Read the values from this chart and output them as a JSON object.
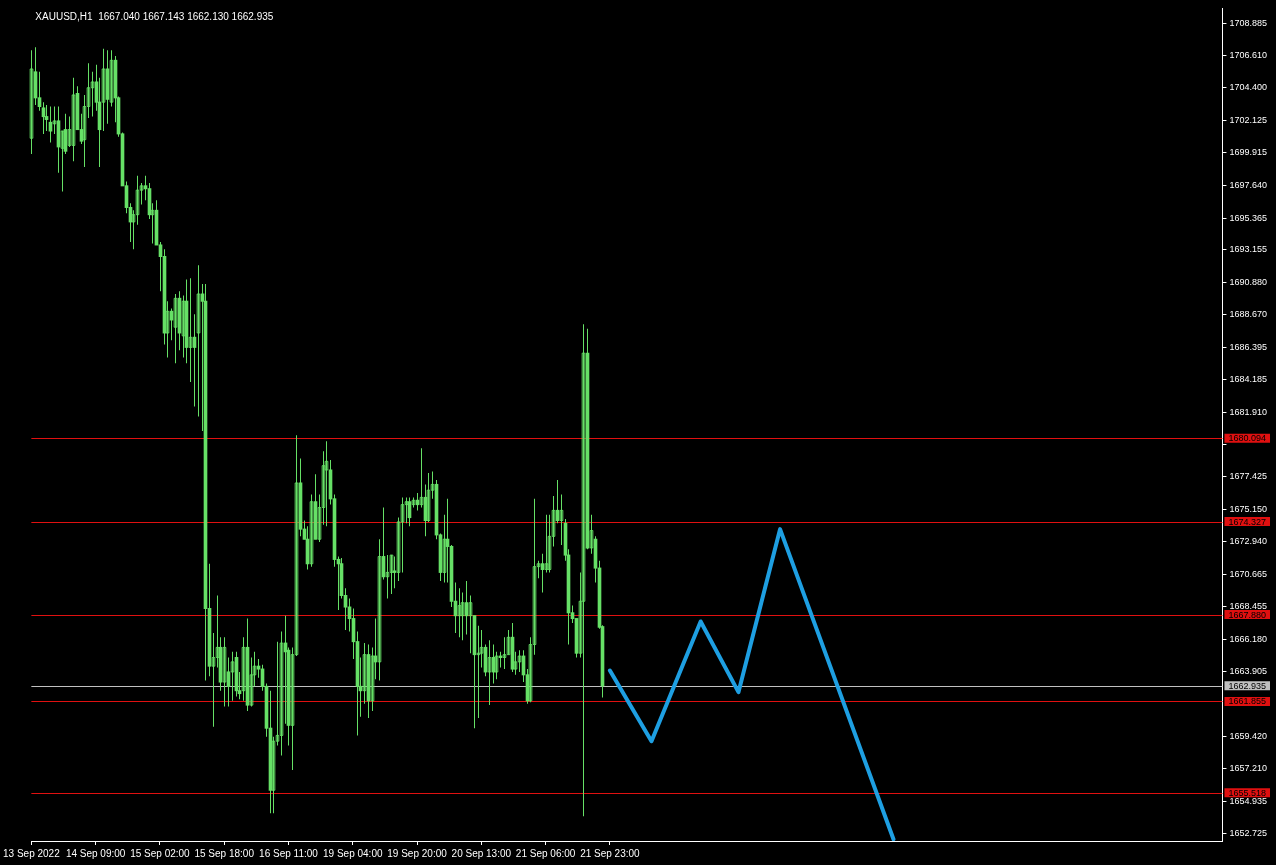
{
  "chart_data": {
    "type": "candlestick",
    "title": "XAUUSD,H1  1667.040 1667.143 1662.130 1662.935",
    "color": "#66e066",
    "categories": [
      "13 Sep 2022",
      null,
      null,
      null,
      null,
      null,
      null,
      null,
      null,
      null,
      null,
      null,
      null,
      null,
      null,
      null,
      null,
      "14 Sep 09:00",
      null,
      null,
      null,
      null,
      null,
      null,
      null,
      null,
      null,
      null,
      null,
      null,
      null,
      null,
      null,
      null,
      "15 Sep 02:00",
      null,
      null,
      null,
      null,
      null,
      null,
      null,
      null,
      null,
      null,
      null,
      null,
      null,
      null,
      null,
      null,
      "15 Sep 18:00",
      null,
      null,
      null,
      null,
      null,
      null,
      null,
      null,
      null,
      null,
      null,
      null,
      null,
      null,
      null,
      null,
      "16 Sep 11:00",
      null,
      null,
      null,
      null,
      null,
      null,
      null,
      null,
      null,
      null,
      null,
      null,
      null,
      null,
      null,
      null,
      "19 Sep 04:00",
      null,
      null,
      null,
      null,
      null,
      null,
      null,
      null,
      null,
      null,
      null,
      null,
      null,
      null,
      null,
      null,
      "19 Sep 20:00",
      null,
      null,
      null,
      null,
      null,
      null,
      null,
      null,
      null,
      null,
      null,
      null,
      null,
      null,
      null,
      null,
      "20 Sep 13:00",
      null,
      null,
      null,
      null,
      null,
      null,
      null,
      null,
      null,
      null,
      null,
      null,
      null,
      null,
      null,
      null,
      "21 Sep 06:00",
      null,
      null,
      null,
      null,
      null,
      null,
      null,
      null,
      null,
      null,
      null,
      null,
      null,
      null,
      null,
      null,
      "21 Sep 23:00",
      null,
      null,
      null,
      null,
      null,
      null,
      null,
      null,
      null,
      null,
      null,
      null,
      null,
      null,
      null,
      null,
      null,
      null,
      null,
      null,
      null,
      null,
      null,
      null,
      null,
      null,
      null,
      null,
      null,
      null,
      null,
      null,
      null,
      null,
      null,
      null,
      null,
      null,
      null,
      null,
      null,
      null,
      null,
      null,
      null,
      null,
      null,
      null,
      null,
      null,
      null,
      null,
      null,
      null,
      null,
      null,
      null,
      null,
      null,
      null,
      null,
      null,
      null,
      null,
      null,
      null,
      null,
      null,
      null,
      null,
      null,
      null,
      null,
      null,
      null,
      null,
      null,
      null,
      null,
      null,
      null,
      null,
      null,
      null,
      null,
      null,
      null,
      null,
      null,
      null,
      null,
      null,
      null,
      null,
      null,
      null,
      null,
      null,
      null,
      null,
      null,
      null,
      null,
      null,
      null,
      null,
      null,
      null,
      null,
      null,
      null,
      null,
      null,
      null,
      null,
      null,
      null,
      null,
      null,
      null,
      null,
      null,
      null,
      null,
      null,
      null,
      null,
      null,
      null,
      null,
      null,
      null,
      null,
      null,
      null,
      null,
      null,
      null,
      null,
      null,
      null,
      null,
      null,
      null,
      null,
      null,
      null,
      null,
      null,
      null,
      null,
      null,
      null,
      null,
      null,
      null,
      null,
      null,
      null,
      null,
      null,
      null
    ],
    "ohlc": [
      [
        1700.9,
        1707.0,
        1699.8,
        1705.7
      ],
      [
        1705.5,
        1707.2,
        1703.2,
        1703.7
      ],
      [
        1703.7,
        1705.5,
        1702.8,
        1703.1
      ],
      [
        1703.0,
        1703.4,
        1701.2,
        1702.4
      ],
      [
        1702.4,
        1703.2,
        1701.4,
        1702.2
      ],
      [
        1702.0,
        1703.1,
        1700.6,
        1701.4
      ],
      [
        1701.9,
        1703.1,
        1701.2,
        1702.1
      ],
      [
        1702.1,
        1703.1,
        1698.5,
        1700.3
      ],
      [
        1700.2,
        1701.4,
        1697.2,
        1701.4
      ],
      [
        1701.5,
        1702.6,
        1699.8,
        1700.0
      ],
      [
        1700.4,
        1702.4,
        1700.3,
        1701.5
      ],
      [
        1700.4,
        1705.1,
        1699.3,
        1703.9
      ],
      [
        1704.0,
        1704.5,
        1701.5,
        1701.5
      ],
      [
        1701.5,
        1702.6,
        1700.5,
        1700.7
      ],
      [
        1700.8,
        1703.9,
        1698.9,
        1703.1
      ],
      [
        1703.1,
        1706.1,
        1702.3,
        1704.4
      ],
      [
        1704.4,
        1705.5,
        1702.4,
        1704.8
      ],
      [
        1704.8,
        1706.0,
        1702.8,
        1703.4
      ],
      [
        1703.4,
        1705.1,
        1698.9,
        1701.5
      ],
      [
        1703.4,
        1707.1,
        1701.4,
        1705.7
      ],
      [
        1705.7,
        1707.0,
        1701.9,
        1703.6
      ],
      [
        1703.4,
        1707.0,
        1703.1,
        1706.3
      ],
      [
        1706.3,
        1706.6,
        1702.0,
        1703.7
      ],
      [
        1703.7,
        1703.8,
        1701.0,
        1701.2
      ],
      [
        1701.2,
        1701.3,
        1697.6,
        1697.6
      ],
      [
        1697.6,
        1697.9,
        1695.7,
        1696.1
      ],
      [
        1696.1,
        1696.4,
        1693.7,
        1695.1
      ],
      [
        1695.1,
        1695.9,
        1693.2,
        1695.6
      ],
      [
        1695.6,
        1698.3,
        1694.9,
        1697.3
      ],
      [
        1697.3,
        1697.8,
        1696.3,
        1697.6
      ],
      [
        1697.6,
        1698.3,
        1696.6,
        1697.4
      ],
      [
        1697.4,
        1697.8,
        1695.3,
        1695.6
      ],
      [
        1695.6,
        1696.4,
        1693.6,
        1695.9
      ],
      [
        1695.9,
        1696.6,
        1693.5,
        1693.5
      ],
      [
        1693.5,
        1693.7,
        1690.3,
        1692.7
      ],
      [
        1692.7,
        1693.2,
        1686.6,
        1687.4
      ],
      [
        1687.4,
        1689.6,
        1685.7,
        1688.9
      ],
      [
        1688.9,
        1689.1,
        1686.9,
        1688.3
      ],
      [
        1687.8,
        1690.1,
        1685.3,
        1689.8
      ],
      [
        1689.8,
        1690.3,
        1686.2,
        1687.4
      ],
      [
        1687.2,
        1690.0,
        1685.7,
        1689.6
      ],
      [
        1689.6,
        1691.1,
        1685.3,
        1686.4
      ],
      [
        1686.4,
        1691.2,
        1684.0,
        1687.1
      ],
      [
        1687.1,
        1688.7,
        1682.3,
        1686.4
      ],
      [
        1687.4,
        1692.1,
        1681.6,
        1690.1
      ],
      [
        1690.1,
        1690.8,
        1680.6,
        1689.6
      ],
      [
        1689.6,
        1690.8,
        1663.3,
        1668.3
      ],
      [
        1668.3,
        1671.4,
        1663.6,
        1664.3
      ],
      [
        1664.3,
        1666.6,
        1660.1,
        1664.9
      ],
      [
        1664.9,
        1669.2,
        1664.2,
        1665.6
      ],
      [
        1665.6,
        1666.3,
        1662.6,
        1663.2
      ],
      [
        1663.2,
        1666.3,
        1661.5,
        1665.6
      ],
      [
        1663.9,
        1664.9,
        1661.5,
        1662.9
      ],
      [
        1663.9,
        1665.3,
        1661.9,
        1664.6
      ],
      [
        1664.9,
        1665.3,
        1662.2,
        1662.6
      ],
      [
        1662.6,
        1663.9,
        1662.0,
        1662.4
      ],
      [
        1662.6,
        1666.3,
        1661.9,
        1665.6
      ],
      [
        1665.6,
        1667.6,
        1661.2,
        1661.6
      ],
      [
        1661.6,
        1664.9,
        1661.5,
        1663.7
      ],
      [
        1663.7,
        1665.3,
        1662.9,
        1664.3
      ],
      [
        1664.3,
        1664.8,
        1663.5,
        1664.1
      ],
      [
        1664.1,
        1664.4,
        1662.6,
        1662.9
      ],
      [
        1662.9,
        1663.1,
        1659.4,
        1660.0
      ],
      [
        1660.0,
        1662.6,
        1654.1,
        1655.7
      ],
      [
        1655.7,
        1659.4,
        1654.1,
        1659.1
      ],
      [
        1659.1,
        1666.0,
        1658.8,
        1659.5
      ],
      [
        1659.5,
        1666.7,
        1658.1,
        1665.9
      ],
      [
        1665.9,
        1667.8,
        1660.3,
        1665.3
      ],
      [
        1665.4,
        1665.6,
        1658.8,
        1660.2
      ],
      [
        1660.2,
        1665.6,
        1657.1,
        1665.1
      ],
      [
        1665.1,
        1680.3,
        1665.0,
        1677.0
      ],
      [
        1677.0,
        1678.7,
        1673.3,
        1673.8
      ],
      [
        1673.8,
        1674.4,
        1673.1,
        1673.1
      ],
      [
        1673.1,
        1674.0,
        1671.0,
        1671.4
      ],
      [
        1671.4,
        1676.2,
        1671.2,
        1675.7
      ],
      [
        1675.7,
        1677.6,
        1673.1,
        1673.1
      ],
      [
        1673.1,
        1676.2,
        1672.9,
        1675.3
      ],
      [
        1675.3,
        1679.2,
        1674.1,
        1678.2
      ],
      [
        1677.9,
        1679.9,
        1674.0,
        1678.5
      ],
      [
        1677.9,
        1678.6,
        1675.5,
        1675.9
      ],
      [
        1675.9,
        1676.2,
        1671.2,
        1671.7
      ],
      [
        1671.7,
        1671.9,
        1668.2,
        1671.4
      ],
      [
        1671.4,
        1671.8,
        1669.0,
        1669.2
      ],
      [
        1669.2,
        1669.7,
        1666.8,
        1668.4
      ],
      [
        1668.4,
        1669.0,
        1666.7,
        1667.6
      ],
      [
        1667.6,
        1668.3,
        1664.8,
        1666.0
      ],
      [
        1666.0,
        1666.7,
        1659.5,
        1662.9
      ],
      [
        1662.9,
        1664.9,
        1660.8,
        1662.6
      ],
      [
        1662.6,
        1665.9,
        1661.7,
        1665.1
      ],
      [
        1665.1,
        1665.8,
        1660.7,
        1661.9
      ],
      [
        1661.9,
        1665.6,
        1661.2,
        1665.0
      ],
      [
        1665.0,
        1667.6,
        1663.4,
        1664.6
      ],
      [
        1664.6,
        1673.1,
        1663.3,
        1671.9
      ],
      [
        1671.9,
        1675.3,
        1670.3,
        1670.5
      ],
      [
        1670.5,
        1672.0,
        1669.0,
        1670.8
      ],
      [
        1670.8,
        1672.0,
        1669.3,
        1672.0
      ],
      [
        1670.9,
        1671.9,
        1669.7,
        1670.8
      ],
      [
        1670.8,
        1674.6,
        1670.2,
        1674.3
      ],
      [
        1674.3,
        1676.0,
        1670.8,
        1675.5
      ],
      [
        1675.5,
        1676.0,
        1674.2,
        1675.7
      ],
      [
        1675.7,
        1676.0,
        1674.0,
        1674.6
      ],
      [
        1675.5,
        1676.0,
        1675.3,
        1675.8
      ],
      [
        1675.8,
        1676.3,
        1675.1,
        1675.5
      ],
      [
        1675.5,
        1679.4,
        1675.3,
        1676.0
      ],
      [
        1676.0,
        1676.9,
        1673.3,
        1674.4
      ],
      [
        1674.4,
        1677.7,
        1674.3,
        1676.5
      ],
      [
        1676.5,
        1677.8,
        1675.9,
        1676.9
      ],
      [
        1676.9,
        1677.2,
        1673.1,
        1673.4
      ],
      [
        1673.4,
        1673.5,
        1670.2,
        1670.8
      ],
      [
        1670.8,
        1674.8,
        1670.1,
        1673.1
      ],
      [
        1673.1,
        1675.9,
        1670.1,
        1672.6
      ],
      [
        1672.6,
        1672.7,
        1668.4,
        1668.8
      ],
      [
        1668.8,
        1670.1,
        1666.6,
        1667.8
      ],
      [
        1667.8,
        1669.7,
        1666.3,
        1668.5
      ],
      [
        1667.8,
        1669.4,
        1666.1,
        1668.7
      ],
      [
        1668.7,
        1670.2,
        1666.5,
        1667.8
      ],
      [
        1667.8,
        1669.2,
        1665.2,
        1668.7
      ],
      [
        1667.8,
        1667.8,
        1660.0,
        1665.1
      ],
      [
        1665.1,
        1667.1,
        1660.7,
        1665.2
      ],
      [
        1665.2,
        1666.8,
        1664.2,
        1665.6
      ],
      [
        1665.6,
        1665.8,
        1663.6,
        1663.9
      ],
      [
        1663.9,
        1666.1,
        1661.6,
        1664.9
      ],
      [
        1664.9,
        1665.8,
        1663.1,
        1663.9
      ],
      [
        1663.9,
        1665.3,
        1663.4,
        1665.0
      ],
      [
        1665.0,
        1665.3,
        1664.2,
        1664.9
      ],
      [
        1664.9,
        1666.3,
        1664.1,
        1665.1
      ],
      [
        1665.1,
        1666.8,
        1665.1,
        1666.3
      ],
      [
        1666.3,
        1667.3,
        1663.9,
        1664.1
      ],
      [
        1664.1,
        1665.3,
        1663.7,
        1664.6
      ],
      [
        1664.6,
        1665.4,
        1663.9,
        1665.0
      ],
      [
        1665.0,
        1665.4,
        1663.2,
        1663.7
      ],
      [
        1663.7,
        1664.1,
        1661.7,
        1661.9
      ],
      [
        1661.9,
        1666.3,
        1661.8,
        1665.8
      ],
      [
        1665.8,
        1675.9,
        1665.1,
        1671.2
      ],
      [
        1671.2,
        1671.6,
        1670.4,
        1671.4
      ],
      [
        1671.4,
        1672.1,
        1669.4,
        1671.0
      ],
      [
        1671.0,
        1674.8,
        1670.8,
        1671.4
      ],
      [
        1671.0,
        1674.8,
        1670.8,
        1673.3
      ],
      [
        1673.3,
        1676.1,
        1672.6,
        1675.1
      ],
      [
        1675.1,
        1677.2,
        1674.2,
        1674.4
      ],
      [
        1674.4,
        1676.2,
        1672.7,
        1675.1
      ],
      [
        1674.2,
        1674.5,
        1671.6,
        1672.0
      ],
      [
        1672.0,
        1672.4,
        1665.8,
        1668.0
      ],
      [
        1668.0,
        1668.5,
        1667.3,
        1667.6
      ],
      [
        1667.6,
        1667.6,
        1664.9,
        1665.2
      ],
      [
        1665.2,
        1670.8,
        1664.9,
        1668.8
      ],
      [
        1668.8,
        1688.0,
        1653.9,
        1686.0
      ],
      [
        1686.0,
        1687.7,
        1672.4,
        1672.5
      ],
      [
        1672.5,
        1674.8,
        1672.1,
        1673.7
      ],
      [
        1673.1,
        1673.3,
        1670.1,
        1671.1
      ],
      [
        1671.1,
        1671.6,
        1666.9,
        1667.0
      ],
      [
        1667.04,
        1667.143,
        1662.13,
        1662.935
      ],
      null,
      null,
      null,
      null,
      null,
      null,
      null,
      null,
      null,
      null,
      null,
      null,
      null,
      null,
      null,
      null,
      null,
      null,
      null,
      null,
      null,
      null,
      null,
      null,
      null,
      null,
      null,
      null,
      null,
      null,
      null,
      null,
      null,
      null,
      null,
      null,
      null,
      null,
      null,
      null,
      null,
      null,
      null,
      null,
      null,
      null,
      null,
      null,
      null,
      null,
      null,
      null,
      null,
      null,
      null,
      null,
      null,
      null,
      null,
      null,
      null,
      null,
      null,
      null,
      null,
      null,
      null,
      null,
      null,
      null,
      null,
      null,
      null,
      null,
      null,
      null,
      null,
      null,
      null,
      null,
      null,
      null,
      null,
      null,
      null,
      null,
      null,
      null,
      null,
      null,
      null,
      null,
      null,
      null,
      null,
      null,
      null,
      null,
      null,
      null,
      null,
      null,
      null,
      null,
      null,
      null,
      null,
      null,
      null,
      null,
      null,
      null,
      null,
      null,
      null,
      null,
      null,
      null,
      null,
      null,
      null,
      null,
      null,
      null,
      null,
      null,
      null,
      null,
      null,
      null,
      null,
      null,
      null,
      null,
      null,
      null,
      null,
      null,
      null,
      null,
      null,
      null,
      null,
      null,
      null,
      null,
      null,
      null,
      null,
      null,
      null,
      null,
      null,
      null,
      null,
      null,
      null,
      null,
      null,
      null,
      null,
      null,
      null,
      null
    ],
    "series": [
      {
        "type": "line",
        "color": "#1e9fe2",
        "values": [
          null,
          null,
          null,
          null,
          null,
          null,
          null,
          null,
          null,
          null,
          null,
          null,
          null,
          null,
          null,
          null,
          null,
          null,
          null,
          null,
          null,
          null,
          null,
          null,
          null,
          null,
          null,
          null,
          null,
          null,
          null,
          null,
          null,
          null,
          null,
          null,
          null,
          null,
          null,
          null,
          null,
          null,
          null,
          null,
          null,
          null,
          null,
          null,
          null,
          null,
          null,
          null,
          null,
          null,
          null,
          null,
          null,
          null,
          null,
          null,
          null,
          null,
          null,
          null,
          null,
          null,
          null,
          null,
          null,
          null,
          null,
          null,
          null,
          null,
          null,
          null,
          null,
          null,
          null,
          null,
          null,
          null,
          null,
          null,
          null,
          null,
          null,
          null,
          null,
          null,
          null,
          null,
          null,
          null,
          null,
          null,
          null,
          null,
          null,
          null,
          null,
          null,
          null,
          null,
          null,
          null,
          null,
          null,
          null,
          null,
          null,
          null,
          null,
          null,
          null,
          null,
          null,
          null,
          null,
          null,
          null,
          null,
          null,
          null,
          null,
          null,
          null,
          null,
          null,
          null,
          null,
          null,
          null,
          null,
          null,
          null,
          null,
          null,
          null,
          null,
          null,
          null,
          null,
          null,
          null,
          null,
          null,
          null,
          null,
          null,
          null,
          null,
          null,
          1664.0,
          null,
          null,
          null,
          null,
          null,
          null,
          null,
          null,
          null,
          null,
          1659.1,
          null,
          null,
          null,
          null,
          null,
          null,
          null,
          null,
          null,
          null,
          null,
          null,
          1667.4,
          null,
          null,
          null,
          null,
          null,
          null,
          null,
          null,
          null,
          1662.5,
          null,
          null,
          null,
          null,
          null,
          null,
          null,
          null,
          null,
          null,
          1673.8,
          null,
          null,
          null,
          null,
          null,
          null,
          null,
          null,
          null,
          null,
          null,
          null,
          null,
          null,
          null,
          null,
          null,
          null,
          null,
          null,
          null,
          null,
          null,
          null,
          null,
          null,
          null,
          null,
          null,
          1652.3,
          null,
          null,
          null,
          null,
          null,
          null,
          null,
          null,
          null,
          null,
          null,
          null,
          null,
          null,
          null,
          null,
          null,
          null,
          null,
          null,
          null,
          null,
          null,
          null,
          null,
          null,
          null,
          null,
          null,
          null,
          null,
          null,
          null,
          null,
          null,
          null,
          null,
          null,
          null,
          null,
          null,
          null,
          null,
          null,
          null,
          null,
          null,
          null,
          null,
          null,
          null,
          null,
          null,
          null,
          null,
          null,
          null,
          null,
          null,
          null,
          null,
          null,
          null,
          null,
          null,
          null,
          null,
          null,
          null,
          null,
          null,
          null,
          null,
          null,
          null,
          null,
          null,
          null,
          null,
          null,
          null,
          null,
          null,
          null,
          null,
          null,
          null
        ]
      }
    ],
    "ylim": [
      1652.18,
      1709.9
    ],
    "yticks": [
      {
        "value": 1652.725,
        "label": "1652.725"
      },
      {
        "value": 1654.935,
        "label": "1654.935"
      },
      {
        "value": 1657.21,
        "label": "1657.210"
      },
      {
        "value": 1659.42,
        "label": "1659.420"
      },
      {
        "value": 1663.905,
        "label": "1663.905"
      },
      {
        "value": 1666.18,
        "label": "1666.180"
      },
      {
        "value": 1668.455,
        "label": "1668.455"
      },
      {
        "value": 1670.665,
        "label": "1670.665"
      },
      {
        "value": 1672.94,
        "label": "1672.940"
      },
      {
        "value": 1675.15,
        "label": "1675.150"
      },
      {
        "value": 1677.425,
        "label": "1677.425"
      },
      {
        "value": 1679.635,
        "label": null
      },
      {
        "value": 1681.91,
        "label": "1681.910"
      },
      {
        "value": 1684.185,
        "label": "1684.185"
      },
      {
        "value": 1686.395,
        "label": "1686.395"
      },
      {
        "value": 1688.67,
        "label": "1688.670"
      },
      {
        "value": 1690.88,
        "label": "1690.880"
      },
      {
        "value": 1693.155,
        "label": "1693.155"
      },
      {
        "value": 1695.365,
        "label": "1695.365"
      },
      {
        "value": 1697.64,
        "label": "1697.640"
      },
      {
        "value": 1699.915,
        "label": "1699.915"
      },
      {
        "value": 1702.125,
        "label": "1702.125"
      },
      {
        "value": 1704.4,
        "label": "1704.400"
      },
      {
        "value": 1706.61,
        "label": "1706.610"
      },
      {
        "value": 1708.885,
        "label": "1708.885"
      }
    ],
    "ref_lines": [
      {
        "axis": "y",
        "value": 1680.094,
        "label": "1680.094",
        "color": "#e01010"
      },
      {
        "axis": "y",
        "value": 1674.327,
        "label": "1674.327",
        "color": "#e01010"
      },
      {
        "axis": "y",
        "value": 1667.88,
        "label": "1667.880",
        "color": "#e01010"
      },
      {
        "axis": "y",
        "value": 1662.935,
        "label": "1662.935",
        "color": "#c0c0c0"
      },
      {
        "axis": "y",
        "value": 1661.855,
        "label": "1661.855",
        "color": "#e01010"
      },
      {
        "axis": "y",
        "value": 1655.518,
        "label": "1655.518",
        "color": "#e01010"
      }
    ]
  }
}
